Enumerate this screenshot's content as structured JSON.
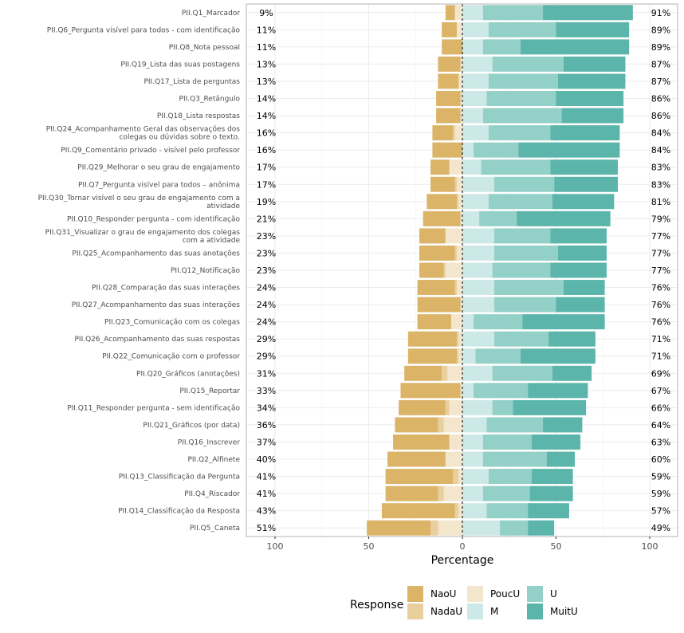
{
  "chart_data": {
    "type": "bar",
    "subtype": "diverging-stacked-likert",
    "xlabel": "Percentage",
    "xlim": [
      -100,
      100
    ],
    "xticks": [
      -100,
      -50,
      0,
      50,
      100
    ],
    "xtick_labels": [
      "100",
      "50",
      "0",
      "50",
      "100"
    ],
    "legend_title": "Response",
    "legend_position": "bottom",
    "levels": [
      "NaoU",
      "NadaU",
      "PoucU",
      "M",
      "U",
      "MuitU"
    ],
    "legend_labels": [
      "NaoU",
      "NadaU",
      "PoucU",
      "M",
      "U",
      "MuitU"
    ],
    "colors": {
      "NaoU": "#dbb468",
      "NadaU": "#e7cf9e",
      "PoucU": "#f4e6cc",
      "M": "#cde9e7",
      "U": "#93d0c7",
      "MuitU": "#5bb5aa"
    },
    "rows": [
      {
        "label": "PII.Q1_Marcador",
        "neg_pct": "9%",
        "pos_pct": "91%",
        "NaoU": 5,
        "NadaU": 0,
        "PoucU": 4,
        "M": 11,
        "U": 32,
        "MuitU": 48
      },
      {
        "label": "PII.Q6_Pergunta visível para todos - com identificação",
        "neg_pct": "11%",
        "pos_pct": "89%",
        "NaoU": 8,
        "NadaU": 0,
        "PoucU": 3,
        "M": 14,
        "U": 36,
        "MuitU": 39
      },
      {
        "label": "PII.Q8_Nota pessoal",
        "neg_pct": "11%",
        "pos_pct": "89%",
        "NaoU": 11,
        "NadaU": 0,
        "PoucU": 0,
        "M": 11,
        "U": 20,
        "MuitU": 58
      },
      {
        "label": "PII.Q19_Lista das suas postagens",
        "neg_pct": "13%",
        "pos_pct": "87%",
        "NaoU": 12,
        "NadaU": 0,
        "PoucU": 1,
        "M": 16,
        "U": 38,
        "MuitU": 33
      },
      {
        "label": "PII.Q17_Lista de perguntas",
        "neg_pct": "13%",
        "pos_pct": "87%",
        "NaoU": 11,
        "NadaU": 0,
        "PoucU": 2,
        "M": 14,
        "U": 37,
        "MuitU": 36
      },
      {
        "label": "PII.Q3_Retângulo",
        "neg_pct": "14%",
        "pos_pct": "86%",
        "NaoU": 13,
        "NadaU": 0,
        "PoucU": 1,
        "M": 13,
        "U": 37,
        "MuitU": 36
      },
      {
        "label": "PII.Q18_Lista respostas",
        "neg_pct": "14%",
        "pos_pct": "86%",
        "NaoU": 13,
        "NadaU": 0,
        "PoucU": 1,
        "M": 11,
        "U": 42,
        "MuitU": 33
      },
      {
        "label": "PII.Q24_Acompanhamento Geral das observações dos colegas ou dúvidas sobre o texto.",
        "neg_pct": "16%",
        "pos_pct": "84%",
        "NaoU": 11,
        "NadaU": 1,
        "PoucU": 4,
        "M": 14,
        "U": 33,
        "MuitU": 37
      },
      {
        "label": "PII.Q9_Comentário privado - visível pelo professor",
        "neg_pct": "16%",
        "pos_pct": "84%",
        "NaoU": 16,
        "NadaU": 0,
        "PoucU": 0,
        "M": 6,
        "U": 24,
        "MuitU": 54
      },
      {
        "label": "PII.Q29_Melhorar o seu grau de engajamento",
        "neg_pct": "17%",
        "pos_pct": "83%",
        "NaoU": 10,
        "NadaU": 0,
        "PoucU": 7,
        "M": 10,
        "U": 37,
        "MuitU": 36
      },
      {
        "label": "PII.Q7_Pergunta visível para todos – anônima",
        "neg_pct": "17%",
        "pos_pct": "83%",
        "NaoU": 13,
        "NadaU": 1,
        "PoucU": 3,
        "M": 17,
        "U": 32,
        "MuitU": 34
      },
      {
        "label": "PII.Q30_Tornar visível o seu grau de engajamento com a atividade",
        "neg_pct": "19%",
        "pos_pct": "81%",
        "NaoU": 16,
        "NadaU": 1,
        "PoucU": 2,
        "M": 14,
        "U": 34,
        "MuitU": 33
      },
      {
        "label": "PII.Q10_Responder pergunta - com identificação",
        "neg_pct": "21%",
        "pos_pct": "79%",
        "NaoU": 20,
        "NadaU": 0,
        "PoucU": 1,
        "M": 9,
        "U": 20,
        "MuitU": 50
      },
      {
        "label": "PII.Q31_Visualizar o grau de engajamento dos colegas com a atividade",
        "neg_pct": "23%",
        "pos_pct": "77%",
        "NaoU": 14,
        "NadaU": 0,
        "PoucU": 9,
        "M": 17,
        "U": 30,
        "MuitU": 30
      },
      {
        "label": "PII.Q25_Acompanhamento das suas anotações",
        "neg_pct": "23%",
        "pos_pct": "77%",
        "NaoU": 19,
        "NadaU": 1,
        "PoucU": 3,
        "M": 17,
        "U": 34,
        "MuitU": 26
      },
      {
        "label": "PII.Q12_Notificação",
        "neg_pct": "23%",
        "pos_pct": "77%",
        "NaoU": 13,
        "NadaU": 1,
        "PoucU": 9,
        "M": 16,
        "U": 31,
        "MuitU": 30
      },
      {
        "label": "PII.Q28_Comparação das suas interações",
        "neg_pct": "24%",
        "pos_pct": "76%",
        "NaoU": 20,
        "NadaU": 1,
        "PoucU": 3,
        "M": 17,
        "U": 37,
        "MuitU": 22
      },
      {
        "label": "PII.Q27_Acompanhamento das suas interações",
        "neg_pct": "24%",
        "pos_pct": "76%",
        "NaoU": 23,
        "NadaU": 0,
        "PoucU": 1,
        "M": 17,
        "U": 33,
        "MuitU": 26
      },
      {
        "label": "PII.Q23_Comunicação com os colegas",
        "neg_pct": "24%",
        "pos_pct": "76%",
        "NaoU": 18,
        "NadaU": 0,
        "PoucU": 6,
        "M": 6,
        "U": 26,
        "MuitU": 44
      },
      {
        "label": "PII.Q26_Acompanhamento das suas respostas",
        "neg_pct": "29%",
        "pos_pct": "71%",
        "NaoU": 26,
        "NadaU": 1,
        "PoucU": 2,
        "M": 17,
        "U": 29,
        "MuitU": 25
      },
      {
        "label": "PII.Q22_Comunicação com o professor",
        "neg_pct": "29%",
        "pos_pct": "71%",
        "NaoU": 26,
        "NadaU": 1,
        "PoucU": 2,
        "M": 7,
        "U": 24,
        "MuitU": 40
      },
      {
        "label": "PII.Q20_Gráficos (anotações)",
        "neg_pct": "31%",
        "pos_pct": "69%",
        "NaoU": 20,
        "NadaU": 3,
        "PoucU": 8,
        "M": 16,
        "U": 32,
        "MuitU": 21
      },
      {
        "label": "PII.Q15_Reportar",
        "neg_pct": "33%",
        "pos_pct": "67%",
        "NaoU": 32,
        "NadaU": 0,
        "PoucU": 1,
        "M": 6,
        "U": 29,
        "MuitU": 32
      },
      {
        "label": "PII.Q11_Responder pergunta - sem identificação",
        "neg_pct": "34%",
        "pos_pct": "66%",
        "NaoU": 25,
        "NadaU": 2,
        "PoucU": 7,
        "M": 16,
        "U": 11,
        "MuitU": 39
      },
      {
        "label": "PII.Q21_Gráficos (por data)",
        "neg_pct": "36%",
        "pos_pct": "64%",
        "NaoU": 23,
        "NadaU": 3,
        "PoucU": 10,
        "M": 13,
        "U": 30,
        "MuitU": 21
      },
      {
        "label": "PII.Q16_Inscrever",
        "neg_pct": "37%",
        "pos_pct": "63%",
        "NaoU": 30,
        "NadaU": 0,
        "PoucU": 7,
        "M": 11,
        "U": 26,
        "MuitU": 26
      },
      {
        "label": "PII.Q2_Alfinete",
        "neg_pct": "40%",
        "pos_pct": "60%",
        "NaoU": 31,
        "NadaU": 0,
        "PoucU": 9,
        "M": 11,
        "U": 34,
        "MuitU": 15
      },
      {
        "label": "PII.Q13_Classificação da Pergunta",
        "neg_pct": "41%",
        "pos_pct": "59%",
        "NaoU": 36,
        "NadaU": 3,
        "PoucU": 2,
        "M": 14,
        "U": 23,
        "MuitU": 22
      },
      {
        "label": "PII.Q4_Riscador",
        "neg_pct": "41%",
        "pos_pct": "59%",
        "NaoU": 28,
        "NadaU": 3,
        "PoucU": 10,
        "M": 11,
        "U": 25,
        "MuitU": 23
      },
      {
        "label": "PII.Q14_Classificação da Resposta",
        "neg_pct": "43%",
        "pos_pct": "57%",
        "NaoU": 39,
        "NadaU": 2,
        "PoucU": 2,
        "M": 13,
        "U": 22,
        "MuitU": 22
      },
      {
        "label": "PII.Q5_Caneta",
        "neg_pct": "51%",
        "pos_pct": "49%",
        "NaoU": 34,
        "NadaU": 4,
        "PoucU": 13,
        "M": 20,
        "U": 15,
        "MuitU": 14
      }
    ]
  }
}
